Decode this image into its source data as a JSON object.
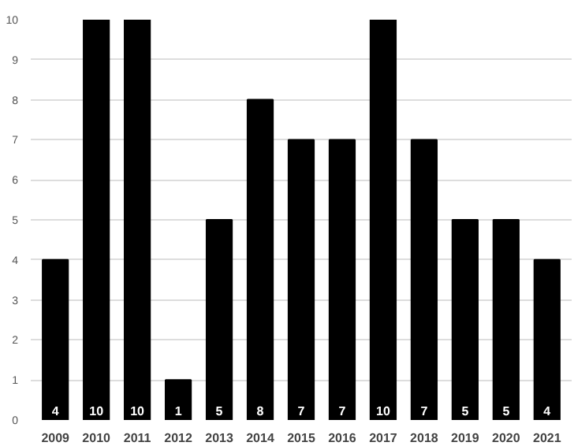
{
  "chart_data": {
    "type": "bar",
    "categories": [
      "2009",
      "2010",
      "2011",
      "2012",
      "2013",
      "2014",
      "2015",
      "2016",
      "2017",
      "2018",
      "2019",
      "2020",
      "2021"
    ],
    "values": [
      4,
      10,
      10,
      1,
      5,
      8,
      7,
      7,
      10,
      7,
      5,
      5,
      4
    ],
    "color": "#000000",
    "ylim": [
      0,
      10
    ],
    "yticks": [
      0,
      1,
      2,
      3,
      4,
      5,
      6,
      7,
      8,
      9,
      10
    ],
    "grid": "y",
    "data_labels": true
  }
}
